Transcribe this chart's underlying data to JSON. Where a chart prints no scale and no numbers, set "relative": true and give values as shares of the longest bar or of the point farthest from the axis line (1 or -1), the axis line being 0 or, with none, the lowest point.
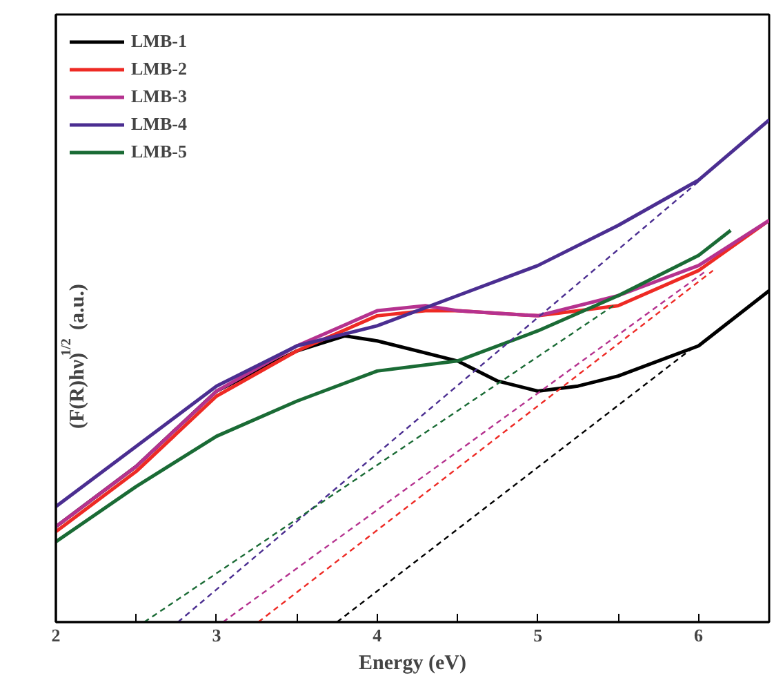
{
  "chart_data": {
    "type": "line",
    "relative": true,
    "xlabel": "Energy (eV)",
    "ylabel": "(F(R)hν)$^{1/2}$ (a.u.)",
    "xlim": [
      2,
      6.44
    ],
    "xticks": [
      2,
      {
        "value": 2.5,
        "label": null
      },
      3,
      {
        "value": 3.5,
        "label": null
      },
      4,
      {
        "value": 4.5,
        "label": null
      },
      5,
      {
        "value": 5.5,
        "label": null
      },
      6
    ],
    "legend": "top left",
    "grid": false,
    "line_style": "solid",
    "marker": "none",
    "series": [
      {
        "name": "LMB-1",
        "color": "#000000",
        "x": [
          2,
          2.5,
          3,
          3.5,
          3.8,
          4,
          4.5,
          4.75,
          5,
          5.25,
          5.5,
          6,
          6.44
        ],
        "values": [
          0.19,
          0.31,
          0.46,
          0.54,
          0.57,
          0.56,
          0.52,
          0.48,
          0.46,
          0.47,
          0.49,
          0.55,
          0.66
        ]
      },
      {
        "name": "LMB-2",
        "color": "#ee2a24",
        "x": [
          2,
          2.5,
          3,
          3.5,
          4,
          4.3,
          4.5,
          5,
          5.5,
          6,
          6.44
        ],
        "values": [
          0.18,
          0.3,
          0.45,
          0.54,
          0.61,
          0.62,
          0.62,
          0.61,
          0.63,
          0.7,
          0.8
        ]
      },
      {
        "name": "LMB-3",
        "color": "#b5328f",
        "x": [
          2,
          2.5,
          3,
          3.5,
          4,
          4.3,
          4.5,
          5,
          5.5,
          6,
          6.44
        ],
        "values": [
          0.19,
          0.31,
          0.46,
          0.55,
          0.62,
          0.63,
          0.62,
          0.61,
          0.65,
          0.71,
          0.8
        ]
      },
      {
        "name": "LMB-4",
        "color": "#4b2e91",
        "x": [
          2,
          2.5,
          3,
          3.5,
          4,
          4.5,
          5,
          5.5,
          6,
          6.44
        ],
        "values": [
          0.23,
          0.35,
          0.47,
          0.55,
          0.59,
          0.65,
          0.71,
          0.79,
          0.88,
          1.0
        ]
      },
      {
        "name": "LMB-5",
        "color": "#1a6b35",
        "x": [
          2,
          2.5,
          3,
          3.5,
          4,
          4.5,
          5,
          5.5,
          6,
          6.2
        ],
        "values": [
          0.16,
          0.27,
          0.37,
          0.44,
          0.5,
          0.52,
          0.58,
          0.65,
          0.73,
          0.78
        ]
      },
      {
        "type": "line",
        "line_style": "dashed",
        "color": "#000000",
        "x": [
          3.75,
          5.98
        ],
        "values": [
          0,
          0.55
        ]
      },
      {
        "type": "line",
        "line_style": "dashed",
        "color": "#ee2a24",
        "x": [
          3.26,
          6.09
        ],
        "values": [
          0,
          0.7
        ]
      },
      {
        "type": "line",
        "line_style": "dashed",
        "color": "#b5328f",
        "x": [
          3.04,
          6.05
        ],
        "values": [
          0,
          0.7
        ]
      },
      {
        "type": "line",
        "line_style": "dashed",
        "color": "#4b2e91",
        "x": [
          2.76,
          6.01
        ],
        "values": [
          0,
          0.88
        ]
      },
      {
        "type": "line",
        "line_style": "dashed",
        "color": "#1a6b35",
        "x": [
          2.55,
          5.47
        ],
        "values": [
          0,
          0.63
        ]
      }
    ]
  }
}
